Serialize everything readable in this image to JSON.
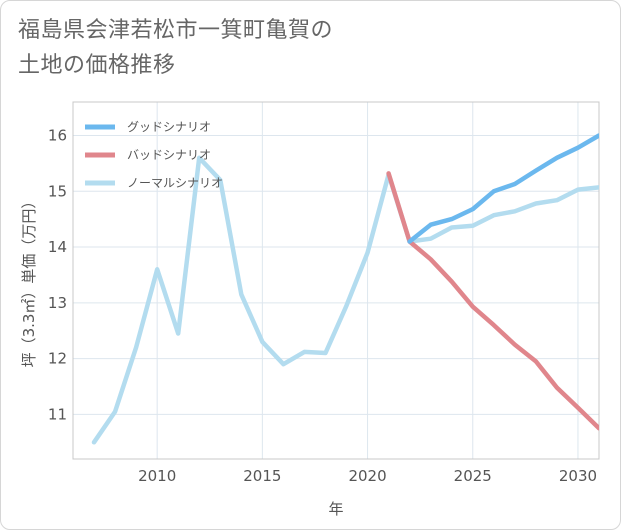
{
  "title": {
    "line1": "福島県会津若松市一箕町亀賀の",
    "line2": "土地の価格推移"
  },
  "chart_data": {
    "type": "line",
    "title": "福島県会津若松市一箕町亀賀の土地の価格推移",
    "xlabel": "年",
    "ylabel": "坪（3.3㎡）単価（万円）",
    "xlim": [
      2006,
      2031
    ],
    "ylim": [
      10.2,
      16.6
    ],
    "x_ticks": [
      2010,
      2015,
      2020,
      2025,
      2030
    ],
    "y_ticks": [
      11,
      12,
      13,
      14,
      15,
      16
    ],
    "grid": true,
    "legend_position": "top-left",
    "series": [
      {
        "name": "グッドシナリオ",
        "color": "#6bb8ee",
        "x": [
          2022,
          2023,
          2024,
          2025,
          2026,
          2027,
          2028,
          2029,
          2030,
          2031
        ],
        "values": [
          14.1,
          14.4,
          14.5,
          14.68,
          15.0,
          15.13,
          15.37,
          15.6,
          15.78,
          16.0
        ]
      },
      {
        "name": "バッドシナリオ",
        "color": "#e0868c",
        "x": [
          2021,
          2022,
          2023,
          2024,
          2025,
          2026,
          2027,
          2028,
          2029,
          2030,
          2031
        ],
        "values": [
          15.32,
          14.1,
          13.78,
          13.38,
          12.93,
          12.6,
          12.25,
          11.95,
          11.48,
          11.12,
          10.75
        ]
      },
      {
        "name": "ノーマルシナリオ",
        "color": "#b3dcef",
        "x": [
          2007,
          2008,
          2009,
          2010,
          2011,
          2012,
          2013,
          2014,
          2015,
          2016,
          2017,
          2018,
          2019,
          2020,
          2021,
          2022,
          2023,
          2024,
          2025,
          2026,
          2027,
          2028,
          2029,
          2030,
          2031
        ],
        "values": [
          10.5,
          11.05,
          12.2,
          13.6,
          12.45,
          15.6,
          15.2,
          13.15,
          12.3,
          11.9,
          12.12,
          12.1,
          12.95,
          13.9,
          15.3,
          14.1,
          14.15,
          14.35,
          14.38,
          14.57,
          14.64,
          14.78,
          14.84,
          15.03,
          15.07
        ]
      }
    ]
  }
}
